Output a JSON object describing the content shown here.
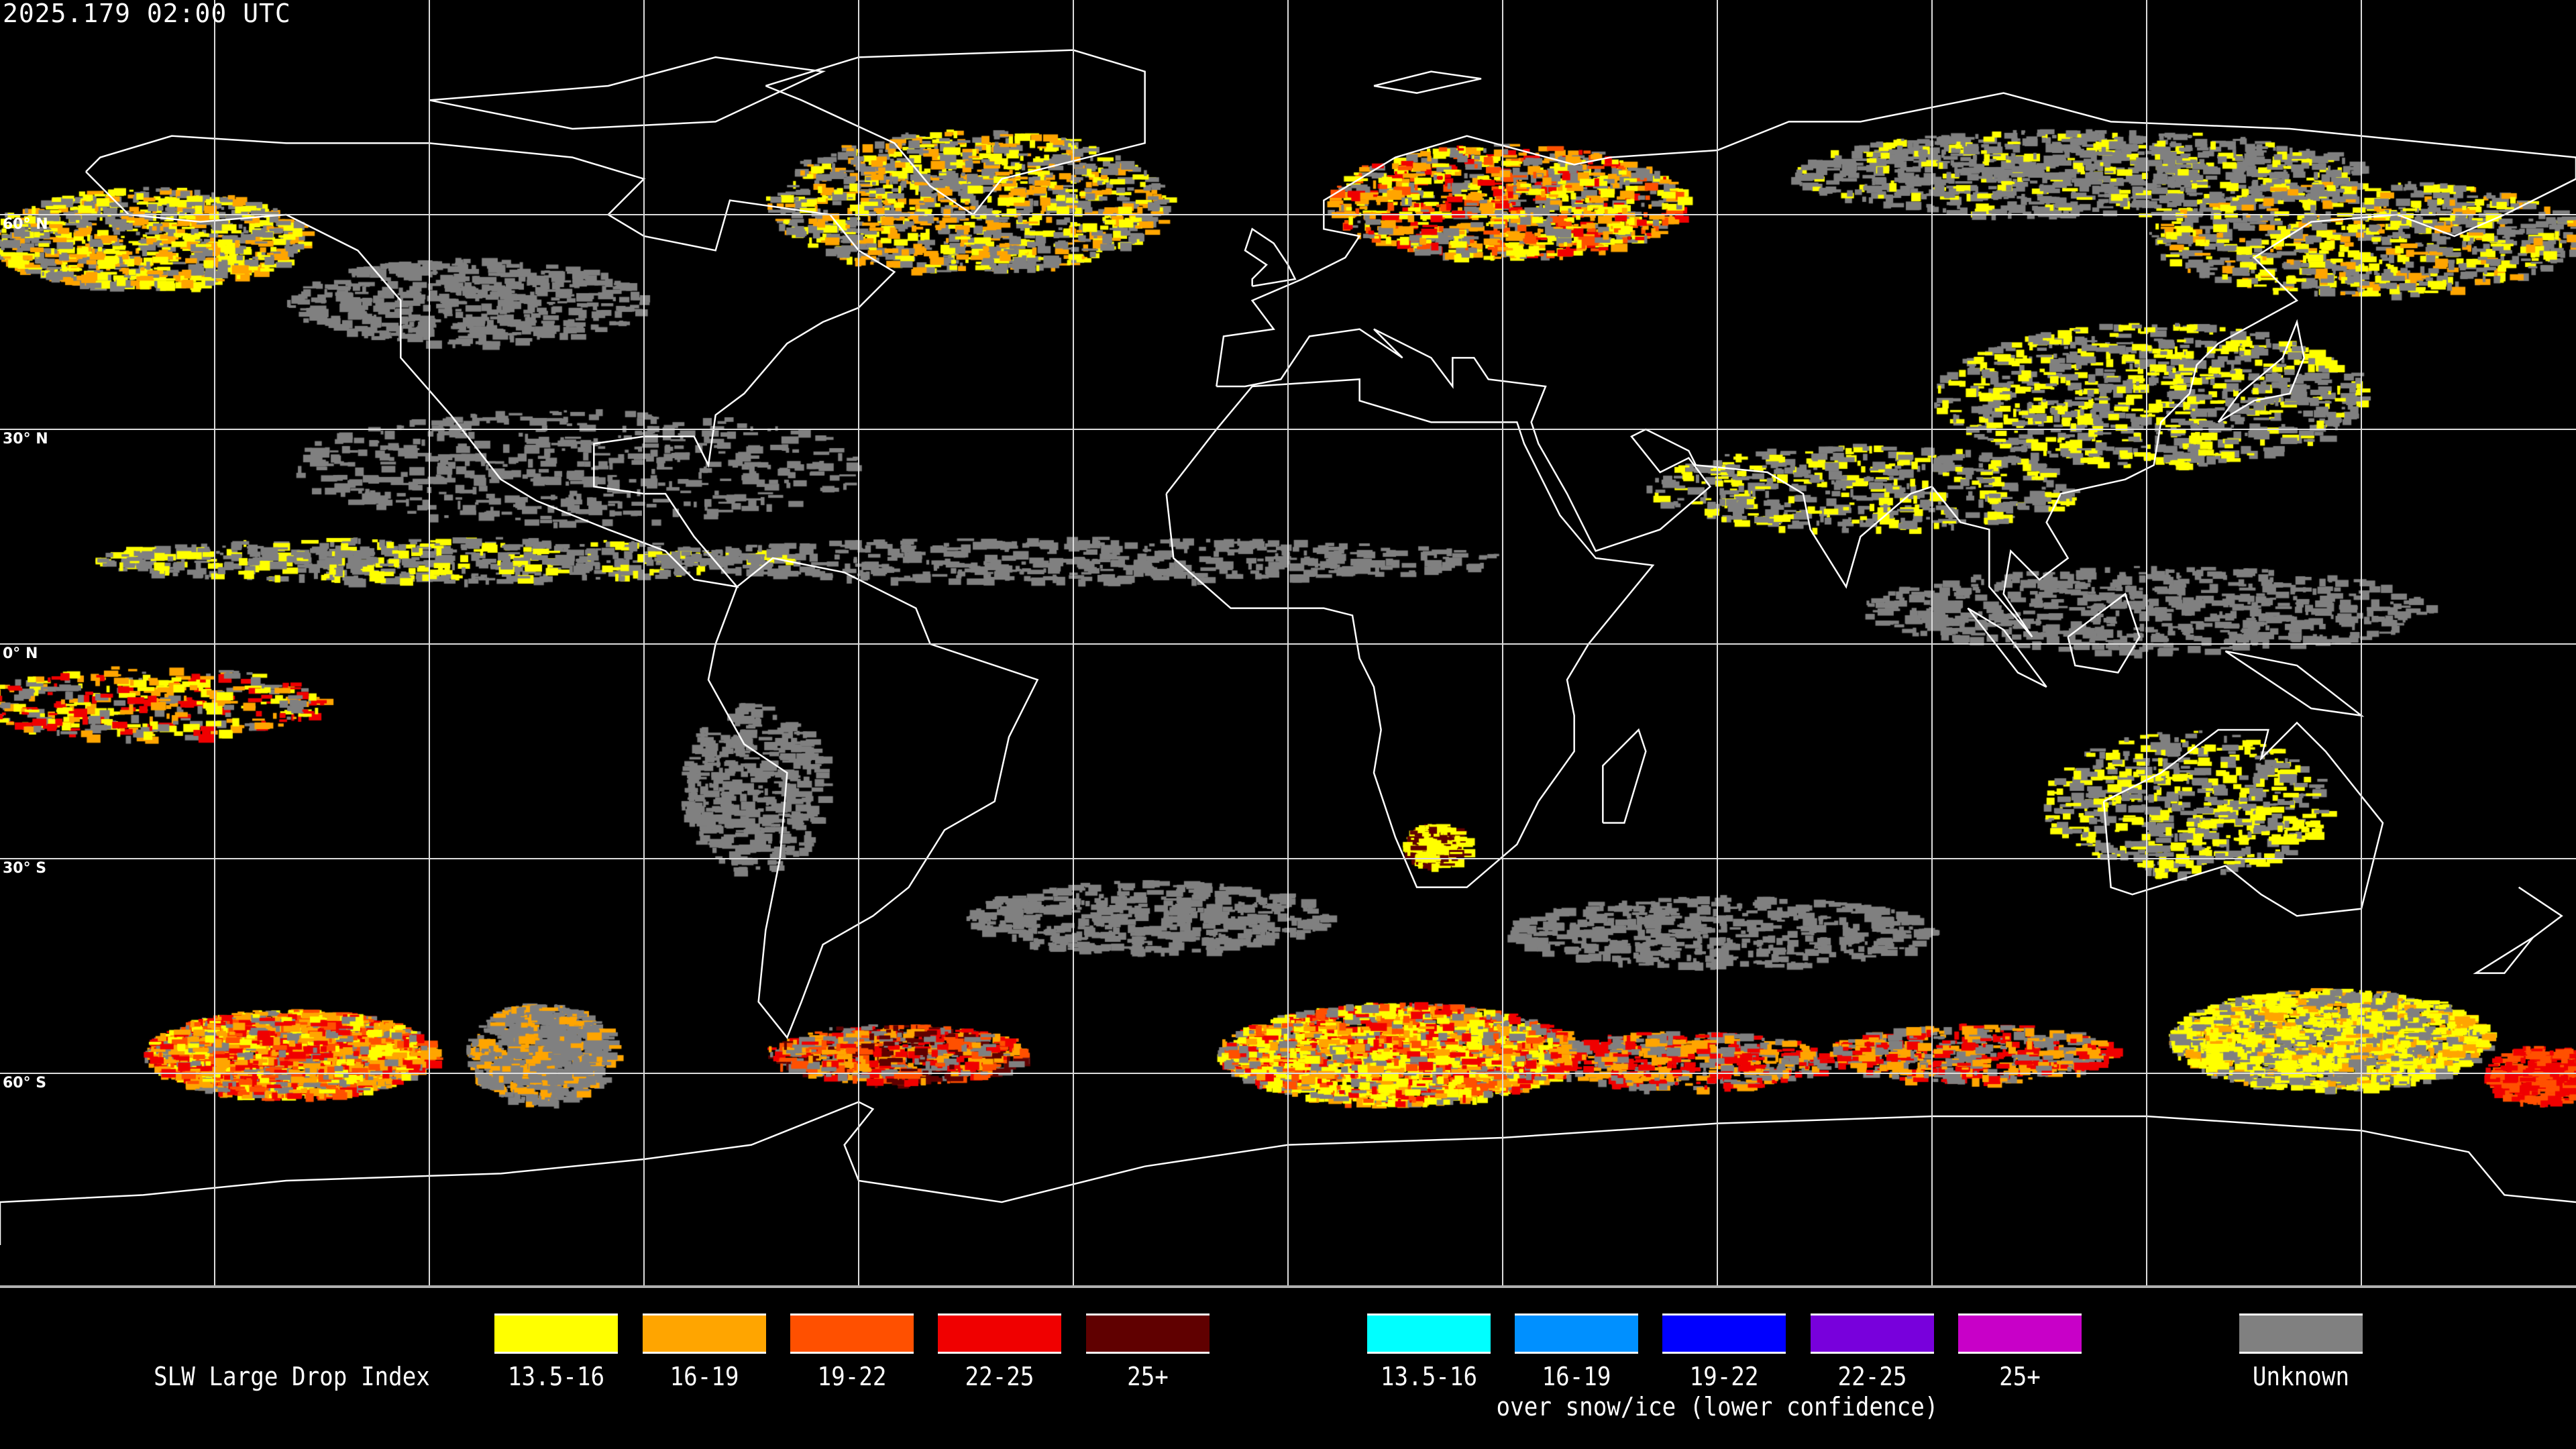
{
  "title": "2025.179 02:00 UTC",
  "latitude_labels": [
    "60° N",
    "30° N",
    "0° N",
    "30° S",
    "60° S"
  ],
  "legend": {
    "title": "SLW Large Drop Index",
    "main": [
      {
        "label": "13.5-16",
        "color": "#ffff00"
      },
      {
        "label": "16-19",
        "color": "#ffa500"
      },
      {
        "label": "19-22",
        "color": "#ff5000"
      },
      {
        "label": "22-25",
        "color": "#f00000"
      },
      {
        "label": "25+",
        "color": "#600000"
      }
    ],
    "snow_ice": [
      {
        "label": "13.5-16",
        "color": "#00ffff"
      },
      {
        "label": "16-19",
        "color": "#0090ff"
      },
      {
        "label": "19-22",
        "color": "#0000ff"
      },
      {
        "label": "22-25",
        "color": "#7800dc"
      },
      {
        "label": "25+",
        "color": "#c800c8"
      }
    ],
    "snow_ice_caption": "over snow/ice (lower confidence)",
    "unknown": {
      "label": "Unknown",
      "color": "#808080"
    }
  }
}
